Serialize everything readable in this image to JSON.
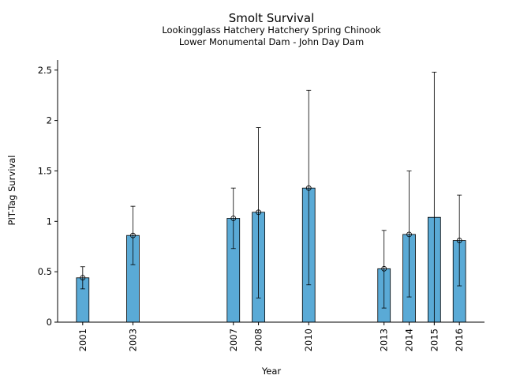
{
  "chart_data": {
    "type": "bar",
    "title": "Smolt Survival",
    "subtitle_lines": [
      "Lookingglass Hatchery Hatchery Spring Chinook",
      "Lower Monumental Dam - John Day Dam"
    ],
    "xlabel": "Year",
    "ylabel": "PIT-Tag Survival",
    "x_range": [
      2000,
      2017
    ],
    "ylim": [
      0,
      2.6
    ],
    "yticks": [
      0,
      0.5,
      1,
      1.5,
      2,
      2.5
    ],
    "ytick_labels": [
      "0",
      "0.5",
      "1",
      "1.5",
      "2",
      "2.5"
    ],
    "bar_color": "#5aaad6",
    "grid": false,
    "categories": [
      "2001",
      "2003",
      "2007",
      "2008",
      "2010",
      "2013",
      "2014",
      "2015",
      "2016"
    ],
    "x": [
      2001,
      2003,
      2007,
      2008,
      2010,
      2013,
      2014,
      2015,
      2016
    ],
    "values": [
      0.44,
      0.86,
      1.03,
      1.09,
      1.33,
      0.53,
      0.87,
      1.04,
      0.81
    ],
    "lower": [
      0.33,
      0.57,
      0.73,
      0.24,
      0.37,
      0.14,
      0.25,
      null,
      0.36
    ],
    "upper": [
      0.55,
      1.15,
      1.33,
      1.93,
      2.3,
      0.91,
      1.5,
      2.48,
      1.26
    ],
    "markers": [
      true,
      true,
      true,
      true,
      true,
      true,
      true,
      false,
      true
    ]
  }
}
